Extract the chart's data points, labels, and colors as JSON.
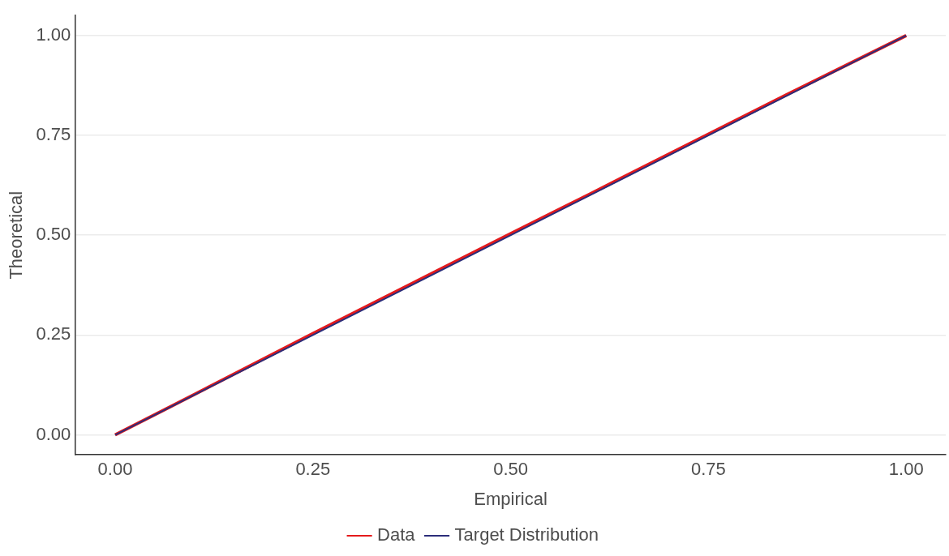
{
  "chart_data": {
    "type": "line",
    "xlabel": "Empirical",
    "ylabel": "Theoretical",
    "x": [
      0,
      0.1,
      0.25,
      0.4,
      0.5,
      0.6,
      0.75,
      0.85,
      1
    ],
    "series": [
      {
        "name": "Data",
        "color": "#e41a1c",
        "values": [
          0,
          0.101,
          0.254,
          0.404,
          0.504,
          0.603,
          0.753,
          0.853,
          1
        ]
      },
      {
        "name": "Target Distribution",
        "color": "#2b2d7a",
        "x": [
          0,
          1
        ],
        "values": [
          0,
          1
        ]
      }
    ],
    "xlim": [
      -0.05,
      1.05
    ],
    "ylim": [
      -0.05,
      1.05
    ],
    "xticks": [
      {
        "value": 0,
        "label": "0.00"
      },
      {
        "value": 0.25,
        "label": "0.25"
      },
      {
        "value": 0.5,
        "label": "0.50"
      },
      {
        "value": 0.75,
        "label": "0.75"
      },
      {
        "value": 1,
        "label": "1.00"
      }
    ],
    "yticks": [
      {
        "value": 0,
        "label": "0.00"
      },
      {
        "value": 0.25,
        "label": "0.25"
      },
      {
        "value": 0.5,
        "label": "0.50"
      },
      {
        "value": 0.75,
        "label": "0.75"
      },
      {
        "value": 1,
        "label": "1.00"
      }
    ],
    "grid": "y",
    "legend": "bottom",
    "marker": "none",
    "line_style": "solid"
  }
}
